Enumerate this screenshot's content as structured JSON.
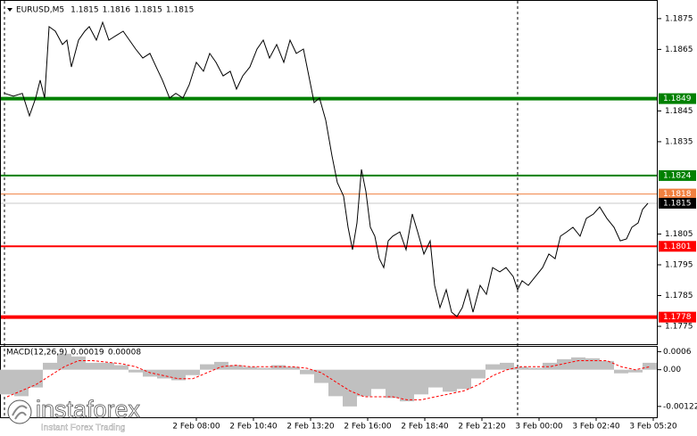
{
  "chart_data": [
    {
      "type": "line",
      "title": "EURUSD,M5",
      "ohlc": [
        1.1815,
        1.1816,
        1.1815,
        1.1815
      ],
      "color": "#000000",
      "x": [
        2.5,
        7.5,
        12.5,
        16.5,
        20,
        22.5,
        25,
        27.5,
        31,
        35,
        37.5,
        40,
        44,
        47.5,
        50,
        54,
        57.5,
        61,
        65,
        69,
        72.5,
        76,
        80,
        84,
        87.5,
        91,
        95,
        98.5,
        102.5,
        106,
        110,
        114,
        117.5,
        121,
        125,
        129,
        132.5,
        136,
        140,
        144,
        147.5,
        151,
        155,
        159,
        162.5,
        166,
        170,
        173.5,
        176,
        179,
        182.5,
        186,
        189,
        192.5,
        195,
        197.5,
        200,
        202.5,
        205,
        207.5,
        210,
        212.5,
        215,
        217.5,
        220,
        224,
        227.5,
        231,
        234,
        237.5,
        241,
        243.5,
        246.5,
        250,
        253,
        256,
        259,
        262,
        265,
        269,
        272.5,
        276,
        280,
        283.5,
        287.5,
        290,
        292.5,
        296,
        300,
        304,
        307.5,
        311,
        314,
        317.5,
        321,
        325,
        328.5,
        332.5,
        336,
        340,
        344,
        347.5,
        351,
        354,
        357.5,
        360,
        363
      ],
      "values": [
        1.18507,
        1.18498,
        1.18507,
        1.18434,
        1.18492,
        1.1855,
        1.18492,
        1.18724,
        1.18709,
        1.18666,
        1.1868,
        1.18593,
        1.1868,
        1.18709,
        1.18724,
        1.1868,
        1.18738,
        1.1868,
        1.18695,
        1.18709,
        1.1868,
        1.18651,
        1.18622,
        1.18637,
        1.18593,
        1.1855,
        1.18492,
        1.18507,
        1.18492,
        1.18535,
        1.18608,
        1.18579,
        1.18637,
        1.18608,
        1.18564,
        1.18579,
        1.18521,
        1.18564,
        1.18593,
        1.18651,
        1.1868,
        1.18622,
        1.18666,
        1.18608,
        1.1868,
        1.18637,
        1.18651,
        1.1855,
        1.18477,
        1.18492,
        1.1842,
        1.18304,
        1.18217,
        1.18173,
        1.18072,
        1.17999,
        1.18086,
        1.1826,
        1.18188,
        1.18072,
        1.18043,
        1.1797,
        1.17941,
        1.18028,
        1.18043,
        1.18057,
        1.17999,
        1.18115,
        1.18057,
        1.17985,
        1.18028,
        1.17883,
        1.17811,
        1.17869,
        1.17796,
        1.17782,
        1.17811,
        1.17869,
        1.17796,
        1.17883,
        1.17854,
        1.17941,
        1.17927,
        1.17941,
        1.17912,
        1.17869,
        1.17898,
        1.17883,
        1.17912,
        1.17941,
        1.17985,
        1.1797,
        1.18043,
        1.18057,
        1.18072,
        1.18043,
        1.18101,
        1.18115,
        1.18138,
        1.18101,
        1.18072,
        1.18028,
        1.18034,
        1.18072,
        1.18086,
        1.1813,
        1.1815
      ],
      "xlim": [
        0,
        368
      ],
      "xticks": [
        {
          "value": 110,
          "label": "2 Feb 08:00"
        },
        {
          "value": 142,
          "label": "2 Feb 10:40"
        },
        {
          "value": 174,
          "label": "2 Feb 13:20"
        },
        {
          "value": 206,
          "label": "2 Feb 16:00"
        },
        {
          "value": 238,
          "label": "2 Feb 18:40"
        },
        {
          "value": 270,
          "label": "2 Feb 21:20"
        },
        {
          "value": 302,
          "label": "3 Feb 00:00"
        },
        {
          "value": 334,
          "label": "3 Feb 02:40"
        },
        {
          "value": 366,
          "label": "3 Feb 05:20"
        }
      ],
      "ylim": [
        1.17695,
        1.18796
      ],
      "yticks": [
        1.1875,
        1.1865,
        1.1845,
        1.1835,
        1.1805,
        1.1795,
        1.1785,
        1.1775
      ],
      "levels": [
        {
          "value": 1.1849,
          "color": "#008000",
          "width": 4
        },
        {
          "value": 1.1824,
          "color": "#008000",
          "width": 2
        },
        {
          "value": 1.1818,
          "color": "#f08040",
          "width": 1
        },
        {
          "value": 1.1801,
          "color": "#ff0000",
          "width": 2
        },
        {
          "value": 1.1778,
          "color": "#ff0000",
          "width": 4
        }
      ],
      "current_price": {
        "value": 1.1815,
        "line_color": "#c8c8c8",
        "box_color": "#000000"
      }
    },
    {
      "type": "macd",
      "title": "MACD(12,26,9)",
      "readings": [
        0.00019,
        8e-05
      ],
      "x": [
        4,
        12,
        20,
        28,
        36,
        44,
        52,
        60,
        68,
        76,
        84,
        92,
        100,
        108,
        116,
        124,
        132,
        140,
        148,
        156,
        164,
        172,
        180,
        188,
        196,
        204,
        212,
        220,
        228,
        236,
        244,
        252,
        260,
        268,
        276,
        284,
        292,
        300,
        308,
        316,
        324,
        332,
        340,
        348,
        356,
        364
      ],
      "series": [
        {
          "color": "#c0c0c0",
          "values": [
            -0.00082,
            -0.00088,
            -0.00059,
            0.00023,
            0.00053,
            0.00044,
            0.00023,
            0.00023,
            0.00015,
            -9e-05,
            -0.00023,
            -0.00029,
            -0.00035,
            -0.00018,
            0.00018,
            0.00026,
            0.00015,
            9e-05,
            6e-05,
            0.00015,
            9e-05,
            -0.00015,
            -0.00044,
            -0.00088,
            -0.00122,
            -0.00088,
            -0.00064,
            -0.00094,
            -0.00105,
            -0.00082,
            -0.00059,
            -0.00073,
            -0.00064,
            -0.00029,
            0.00018,
            0.00023,
            9e-05,
            6e-05,
            0.00023,
            0.00035,
            0.00041,
            0.00038,
            0.00029,
            -0.00012,
            -9e-05,
            0.00023
          ]
        },
        {
          "color": "#ff0000",
          "values": [
            -0.0009,
            -0.0007,
            -0.0005,
            -0.0002,
            0.0001,
            0.0003,
            0.0003,
            0.00025,
            0.0002,
            0.0001,
            -0.0001,
            -0.0002,
            -0.0003,
            -0.0003,
            -0.0001,
            0.0001,
            0.00015,
            0.0001,
            0.0001,
            0.0001,
            0.0001,
            5e-05,
            -0.0001,
            -0.0004,
            -0.0007,
            -0.0009,
            -0.0009,
            -0.0009,
            -0.001,
            -0.001,
            -0.0009,
            -0.0008,
            -0.0007,
            -0.0005,
            -0.0002,
            0,
            0.0001,
            0.0001,
            0.0001,
            0.0002,
            0.0003,
            0.0003,
            0.0003,
            0.0001,
            0,
            0.0001
          ]
        }
      ],
      "xlim": [
        0,
        368
      ],
      "ylim": [
        -0.00158,
        0.00076
      ],
      "yticks": [
        0.0006,
        {
          "value": 0,
          "label": "0.00"
        },
        -0.00122
      ]
    }
  ],
  "watermark": {
    "brand": "instaforex",
    "tagline": "Instant Forex Trading"
  }
}
